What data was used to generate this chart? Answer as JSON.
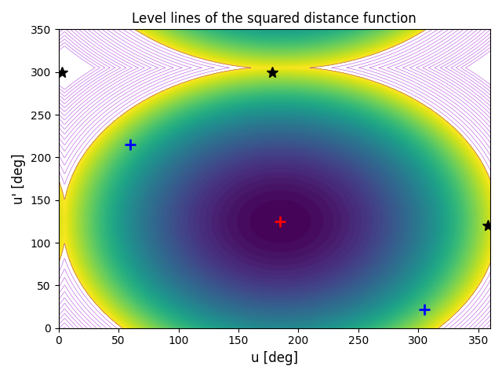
{
  "title": "Level lines of the squared distance function",
  "xlabel": "u [deg]",
  "ylabel": "u' [deg]",
  "xlim": [
    0,
    360
  ],
  "ylim": [
    0,
    350
  ],
  "xticks": [
    0,
    50,
    100,
    150,
    200,
    250,
    300,
    350
  ],
  "yticks": [
    0,
    50,
    100,
    150,
    200,
    250,
    300,
    350
  ],
  "red_plus": [
    185,
    125
  ],
  "blue_plus_1": [
    60,
    215
  ],
  "blue_plus_2": [
    305,
    22
  ],
  "black_star_1": [
    3,
    300
  ],
  "black_star_2": [
    178,
    300
  ],
  "black_star_3": [
    358,
    120
  ],
  "n_levels": 50,
  "cmap": "viridis",
  "figsize": [
    6.4,
    4.8
  ],
  "dpi": 100,
  "period_u": 360,
  "period_v": 360
}
